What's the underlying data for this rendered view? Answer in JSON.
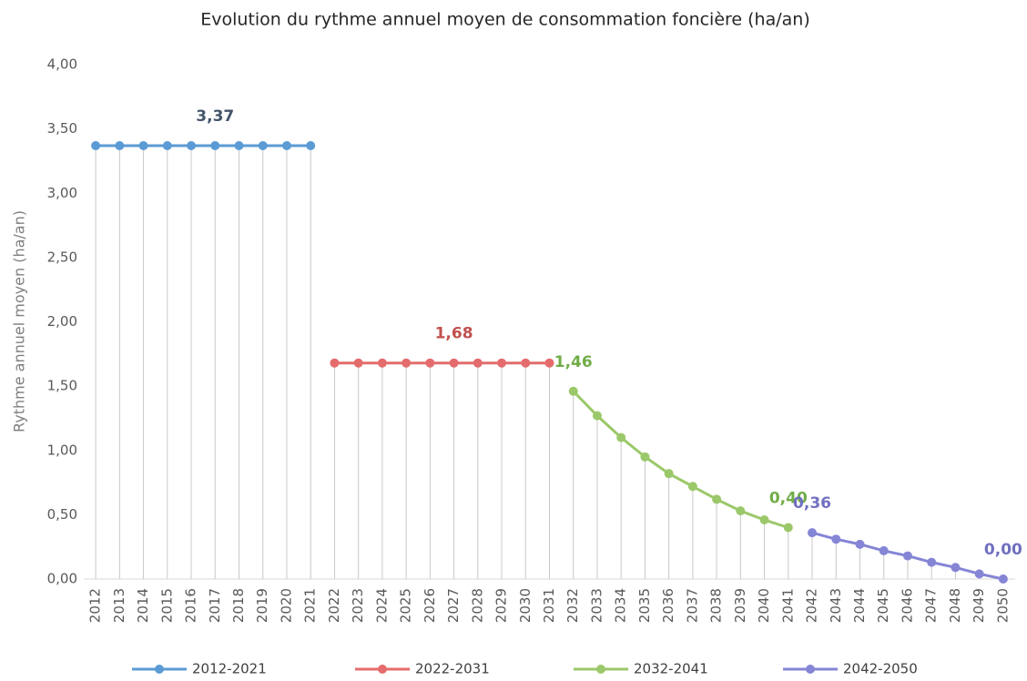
{
  "chart_data": {
    "type": "line",
    "title": "Evolution du rythme annuel moyen de consommation foncière (ha/an)",
    "y_label": "Rythme annuel moyen (ha/an)",
    "categories": [
      "2012",
      "2013",
      "2014",
      "2015",
      "2016",
      "2017",
      "2018",
      "2019",
      "2020",
      "2021",
      "2022",
      "2023",
      "2024",
      "2025",
      "2026",
      "2027",
      "2028",
      "2029",
      "2030",
      "2031",
      "2032",
      "2033",
      "2034",
      "2035",
      "2036",
      "2037",
      "2038",
      "2039",
      "2040",
      "2041",
      "2042",
      "2043",
      "2044",
      "2045",
      "2046",
      "2047",
      "2048",
      "2049",
      "2050"
    ],
    "ylim": [
      0,
      4
    ],
    "yticks": [
      {
        "value": 0,
        "label": "0,00"
      },
      {
        "value": 0.5,
        "label": "0,50"
      },
      {
        "value": 1,
        "label": "1,00"
      },
      {
        "value": 1.5,
        "label": "1,50"
      },
      {
        "value": 2,
        "label": "2,00"
      },
      {
        "value": 2.5,
        "label": "2,50"
      },
      {
        "value": 3,
        "label": "3,00"
      },
      {
        "value": 3.5,
        "label": "3,50"
      },
      {
        "value": 4,
        "label": "4,00"
      }
    ],
    "drop_lines": true,
    "legend": "bottom",
    "series": [
      {
        "name": "2012-2021",
        "color": "#5b9bd5",
        "label_color": "#44546a",
        "values": [
          3.37,
          3.37,
          3.37,
          3.37,
          3.37,
          3.37,
          3.37,
          3.37,
          3.37,
          3.37,
          null,
          null,
          null,
          null,
          null,
          null,
          null,
          null,
          null,
          null,
          null,
          null,
          null,
          null,
          null,
          null,
          null,
          null,
          null,
          null,
          null,
          null,
          null,
          null,
          null,
          null,
          null,
          null,
          null
        ],
        "value_labels": [
          null,
          null,
          null,
          null,
          null,
          "3,37",
          null,
          null,
          null,
          null,
          null,
          null,
          null,
          null,
          null,
          null,
          null,
          null,
          null,
          null,
          null,
          null,
          null,
          null,
          null,
          null,
          null,
          null,
          null,
          null,
          null,
          null,
          null,
          null,
          null,
          null,
          null,
          null,
          null
        ]
      },
      {
        "name": "2022-2031",
        "color": "#e46c6c",
        "label_color": "#c0504d",
        "values": [
          null,
          null,
          null,
          null,
          null,
          null,
          null,
          null,
          null,
          null,
          1.68,
          1.68,
          1.68,
          1.68,
          1.68,
          1.68,
          1.68,
          1.68,
          1.68,
          1.68,
          null,
          null,
          null,
          null,
          null,
          null,
          null,
          null,
          null,
          null,
          null,
          null,
          null,
          null,
          null,
          null,
          null,
          null,
          null
        ],
        "value_labels": [
          null,
          null,
          null,
          null,
          null,
          null,
          null,
          null,
          null,
          null,
          null,
          null,
          null,
          null,
          null,
          "1,68",
          null,
          null,
          null,
          null,
          null,
          null,
          null,
          null,
          null,
          null,
          null,
          null,
          null,
          null,
          null,
          null,
          null,
          null,
          null,
          null,
          null,
          null,
          null
        ]
      },
      {
        "name": "2032-2041",
        "color": "#9bc86a",
        "label_color": "#70ad47",
        "values": [
          null,
          null,
          null,
          null,
          null,
          null,
          null,
          null,
          null,
          null,
          null,
          null,
          null,
          null,
          null,
          null,
          null,
          null,
          null,
          null,
          1.46,
          1.27,
          1.1,
          0.95,
          0.82,
          0.72,
          0.62,
          0.53,
          0.46,
          0.4,
          null,
          null,
          null,
          null,
          null,
          null,
          null,
          null,
          null
        ],
        "value_labels": [
          null,
          null,
          null,
          null,
          null,
          null,
          null,
          null,
          null,
          null,
          null,
          null,
          null,
          null,
          null,
          null,
          null,
          null,
          null,
          null,
          "1,46",
          null,
          null,
          null,
          null,
          null,
          null,
          null,
          null,
          "0,40",
          null,
          null,
          null,
          null,
          null,
          null,
          null,
          null,
          null
        ]
      },
      {
        "name": "2042-2050",
        "color": "#8585d6",
        "label_color": "#7070c0",
        "values": [
          null,
          null,
          null,
          null,
          null,
          null,
          null,
          null,
          null,
          null,
          null,
          null,
          null,
          null,
          null,
          null,
          null,
          null,
          null,
          null,
          null,
          null,
          null,
          null,
          null,
          null,
          null,
          null,
          null,
          null,
          0.36,
          0.31,
          0.27,
          0.22,
          0.18,
          0.13,
          0.09,
          0.04,
          0
        ],
        "value_labels": [
          null,
          null,
          null,
          null,
          null,
          null,
          null,
          null,
          null,
          null,
          null,
          null,
          null,
          null,
          null,
          null,
          null,
          null,
          null,
          null,
          null,
          null,
          null,
          null,
          null,
          null,
          null,
          null,
          null,
          null,
          "0,36",
          null,
          null,
          null,
          null,
          null,
          null,
          null,
          "0,00"
        ]
      }
    ]
  }
}
